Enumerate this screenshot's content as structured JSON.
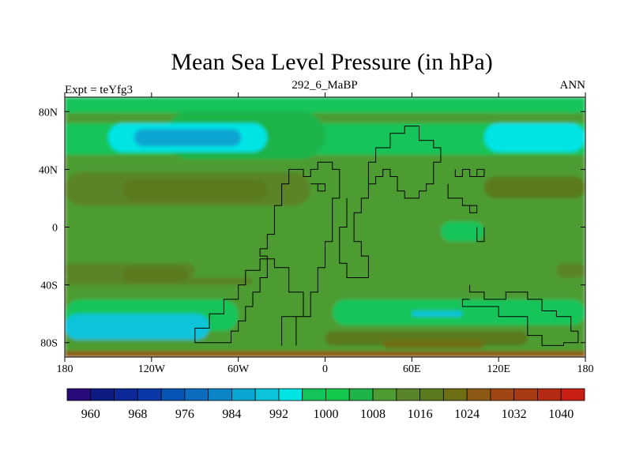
{
  "chart_data": {
    "type": "heatmap",
    "title": "Mean Sea Level Pressure (in hPa)",
    "subtitle_left": "Expt = teYfg3",
    "subtitle_center": "292_6_MaBP",
    "subtitle_right": "ANN",
    "xlim": [
      -180,
      180
    ],
    "ylim": [
      -90,
      90
    ],
    "x_ticks": [
      {
        "value": -180,
        "label": "180"
      },
      {
        "value": -120,
        "label": "120W"
      },
      {
        "value": -60,
        "label": "60W"
      },
      {
        "value": 0,
        "label": "0"
      },
      {
        "value": 60,
        "label": "60E"
      },
      {
        "value": 120,
        "label": "120E"
      },
      {
        "value": 180,
        "label": "180"
      }
    ],
    "y_ticks": [
      {
        "value": 80,
        "label": "80N"
      },
      {
        "value": 40,
        "label": "40N"
      },
      {
        "value": 0,
        "label": "0"
      },
      {
        "value": -40,
        "label": "40S"
      },
      {
        "value": -80,
        "label": "80S"
      }
    ],
    "colorbar": {
      "levels": [
        956,
        960,
        964,
        968,
        972,
        976,
        980,
        984,
        988,
        992,
        996,
        1000,
        1004,
        1008,
        1012,
        1016,
        1020,
        1024,
        1028,
        1032,
        1036,
        1040,
        1044
      ],
      "labels": [
        "960",
        "968",
        "976",
        "984",
        "992",
        "1000",
        "1008",
        "1016",
        "1024",
        "1032",
        "1040"
      ],
      "colors": [
        "#2a0a78",
        "#0c1a82",
        "#0c2896",
        "#0a38a8",
        "#0654b4",
        "#0b6cc0",
        "#0c84c8",
        "#0ba6d2",
        "#0cc4da",
        "#00e4e4",
        "#14c45a",
        "#14c84e",
        "#1eb44a",
        "#4e9c32",
        "#5a8428",
        "#5a7a1e",
        "#6e6e14",
        "#8c5a14",
        "#a04614",
        "#a83a14",
        "#b42a14",
        "#c81e14"
      ]
    },
    "field": [
      {
        "lon0": -180,
        "lon1": 180,
        "lat0": -90,
        "lat1": 90,
        "value": 1010
      },
      {
        "lon0": -180,
        "lon1": 180,
        "lat0": 50,
        "lat1": 90,
        "value": 999
      },
      {
        "lon0": -180,
        "lon1": 180,
        "lat0": 72,
        "lat1": 79,
        "value": 1009
      },
      {
        "lon0": -110,
        "lon1": 0,
        "lat0": 47,
        "lat1": 80,
        "value": 1005
      },
      {
        "lon0": -150,
        "lon1": -40,
        "lat0": 52,
        "lat1": 72,
        "value": 993
      },
      {
        "lon0": -132,
        "lon1": -58,
        "lat0": 56,
        "lat1": 68,
        "value": 986
      },
      {
        "lon0": 110,
        "lon1": 180,
        "lat0": 52,
        "lat1": 72,
        "value": 993
      },
      {
        "lon0": -180,
        "lon1": -10,
        "lat0": 15,
        "lat1": 38,
        "value": 1015
      },
      {
        "lon0": -140,
        "lon1": -40,
        "lat0": 18,
        "lat1": 33,
        "value": 1019
      },
      {
        "lon0": -180,
        "lon1": -30,
        "lat0": 38,
        "lat1": 44,
        "value": 1011
      },
      {
        "lon0": 110,
        "lon1": 180,
        "lat0": 20,
        "lat1": 35,
        "value": 1016
      },
      {
        "lon0": 80,
        "lon1": 110,
        "lat0": -10,
        "lat1": 4,
        "value": 998
      },
      {
        "lon0": -180,
        "lon1": -90,
        "lat0": -35,
        "lat1": -25,
        "value": 1014
      },
      {
        "lon0": -180,
        "lon1": -50,
        "lat0": -40,
        "lat1": -35,
        "value": 1014
      },
      {
        "lon0": -140,
        "lon1": -95,
        "lat0": -38,
        "lat1": -28,
        "value": 1019
      },
      {
        "lon0": 160,
        "lon1": 180,
        "lat0": -35,
        "lat1": -25,
        "value": 1015
      },
      {
        "lon0": -180,
        "lon1": -60,
        "lat0": -72,
        "lat1": -50,
        "value": 998
      },
      {
        "lon0": -180,
        "lon1": -80,
        "lat0": -78,
        "lat1": -60,
        "value": 991
      },
      {
        "lon0": 5,
        "lon1": 180,
        "lat0": -68,
        "lat1": -50,
        "value": 998
      },
      {
        "lon0": 60,
        "lon1": 95,
        "lat0": -62,
        "lat1": -58,
        "value": 989
      },
      {
        "lon0": 0,
        "lon1": 140,
        "lat0": -82,
        "lat1": -72,
        "value": 1016
      },
      {
        "lon0": 40,
        "lon1": 110,
        "lat0": -84,
        "lat1": -78,
        "value": 1023
      },
      {
        "lon0": -180,
        "lon1": 180,
        "lat0": -90,
        "lat1": -86,
        "value": 1027
      }
    ],
    "coastline": [
      [
        [
          -20,
          -82
        ],
        [
          -20,
          -62
        ],
        [
          -10,
          -62
        ],
        [
          -10,
          -45
        ],
        [
          -5,
          -45
        ],
        [
          -5,
          -28
        ],
        [
          0,
          -28
        ],
        [
          0,
          -10
        ],
        [
          5,
          -10
        ],
        [
          5,
          20
        ],
        [
          10,
          20
        ],
        [
          10,
          40
        ],
        [
          5,
          40
        ],
        [
          5,
          45
        ],
        [
          -5,
          45
        ],
        [
          -5,
          40
        ],
        [
          -10,
          40
        ],
        [
          -10,
          35
        ],
        [
          -15,
          35
        ],
        [
          -15,
          40
        ],
        [
          -25,
          40
        ],
        [
          -25,
          30
        ],
        [
          -30,
          30
        ],
        [
          -30,
          15
        ],
        [
          -35,
          15
        ],
        [
          -35,
          -5
        ],
        [
          -40,
          -5
        ],
        [
          -40,
          -15
        ],
        [
          -45,
          -15
        ],
        [
          -45,
          -20
        ],
        [
          -40,
          -20
        ],
        [
          -40,
          -35
        ],
        [
          -45,
          -35
        ],
        [
          -45,
          -45
        ],
        [
          -50,
          -45
        ],
        [
          -50,
          -55
        ],
        [
          -55,
          -55
        ],
        [
          -55,
          -65
        ],
        [
          -60,
          -65
        ],
        [
          -60,
          -72
        ],
        [
          -65,
          -72
        ],
        [
          -65,
          -80
        ],
        [
          -90,
          -80
        ],
        [
          -90,
          -70
        ],
        [
          -80,
          -70
        ],
        [
          -80,
          -60
        ],
        [
          -70,
          -60
        ],
        [
          -70,
          -50
        ],
        [
          -60,
          -50
        ],
        [
          -60,
          -40
        ],
        [
          -55,
          -40
        ],
        [
          -55,
          -30
        ],
        [
          -45,
          -30
        ],
        [
          -45,
          -22
        ],
        [
          -35,
          -22
        ],
        [
          -35,
          -28
        ],
        [
          -25,
          -28
        ],
        [
          -25,
          -45
        ],
        [
          -15,
          -45
        ],
        [
          -15,
          -62
        ],
        [
          -30,
          -62
        ],
        [
          -30,
          -82
        ]
      ],
      [
        [
          -10,
          30
        ],
        [
          -5,
          30
        ],
        [
          -5,
          25
        ],
        [
          0,
          25
        ],
        [
          0,
          30
        ],
        [
          -5,
          30
        ]
      ],
      [
        [
          15,
          20
        ],
        [
          15,
          0
        ],
        [
          10,
          0
        ],
        [
          10,
          -25
        ],
        [
          15,
          -25
        ],
        [
          15,
          -35
        ],
        [
          30,
          -35
        ],
        [
          30,
          -20
        ],
        [
          25,
          -20
        ],
        [
          25,
          -10
        ],
        [
          20,
          -10
        ],
        [
          20,
          10
        ],
        [
          25,
          10
        ],
        [
          25,
          20
        ],
        [
          30,
          20
        ],
        [
          30,
          45
        ],
        [
          35,
          45
        ],
        [
          35,
          55
        ],
        [
          45,
          55
        ],
        [
          45,
          65
        ],
        [
          55,
          65
        ],
        [
          55,
          70
        ],
        [
          65,
          70
        ],
        [
          65,
          60
        ],
        [
          75,
          60
        ],
        [
          75,
          55
        ],
        [
          80,
          55
        ],
        [
          80,
          45
        ],
        [
          75,
          45
        ],
        [
          75,
          30
        ],
        [
          70,
          30
        ],
        [
          70,
          25
        ],
        [
          65,
          25
        ],
        [
          65,
          20
        ],
        [
          55,
          20
        ],
        [
          55,
          25
        ],
        [
          50,
          25
        ],
        [
          50,
          35
        ],
        [
          45,
          35
        ],
        [
          45,
          40
        ],
        [
          40,
          40
        ],
        [
          40,
          35
        ],
        [
          35,
          35
        ],
        [
          35,
          30
        ],
        [
          30,
          30
        ],
        [
          30,
          20
        ]
      ],
      [
        [
          90,
          40
        ],
        [
          90,
          35
        ],
        [
          95,
          35
        ],
        [
          95,
          40
        ],
        [
          100,
          40
        ],
        [
          100,
          35
        ],
        [
          105,
          35
        ],
        [
          105,
          40
        ],
        [
          110,
          40
        ],
        [
          110,
          35
        ],
        [
          100,
          35
        ]
      ],
      [
        [
          85,
          30
        ],
        [
          85,
          20
        ],
        [
          95,
          20
        ],
        [
          95,
          15
        ],
        [
          100,
          15
        ],
        [
          100,
          10
        ],
        [
          105,
          10
        ],
        [
          105,
          15
        ],
        [
          100,
          15
        ],
        [
          95,
          15
        ]
      ],
      [
        [
          105,
          0
        ],
        [
          105,
          -10
        ],
        [
          110,
          -10
        ],
        [
          110,
          0
        ]
      ],
      [
        [
          100,
          -40
        ],
        [
          100,
          -45
        ],
        [
          110,
          -45
        ],
        [
          110,
          -50
        ],
        [
          125,
          -50
        ],
        [
          125,
          -45
        ],
        [
          140,
          -45
        ],
        [
          140,
          -50
        ],
        [
          150,
          -50
        ],
        [
          150,
          -58
        ],
        [
          160,
          -58
        ],
        [
          160,
          -62
        ],
        [
          170,
          -62
        ],
        [
          170,
          -72
        ],
        [
          175,
          -72
        ],
        [
          175,
          -80
        ],
        [
          165,
          -80
        ],
        [
          165,
          -82
        ],
        [
          150,
          -82
        ],
        [
          150,
          -75
        ],
        [
          140,
          -75
        ],
        [
          140,
          -62
        ],
        [
          120,
          -62
        ],
        [
          120,
          -55
        ],
        [
          95,
          -55
        ],
        [
          95,
          -50
        ],
        [
          100,
          -50
        ]
      ]
    ]
  }
}
